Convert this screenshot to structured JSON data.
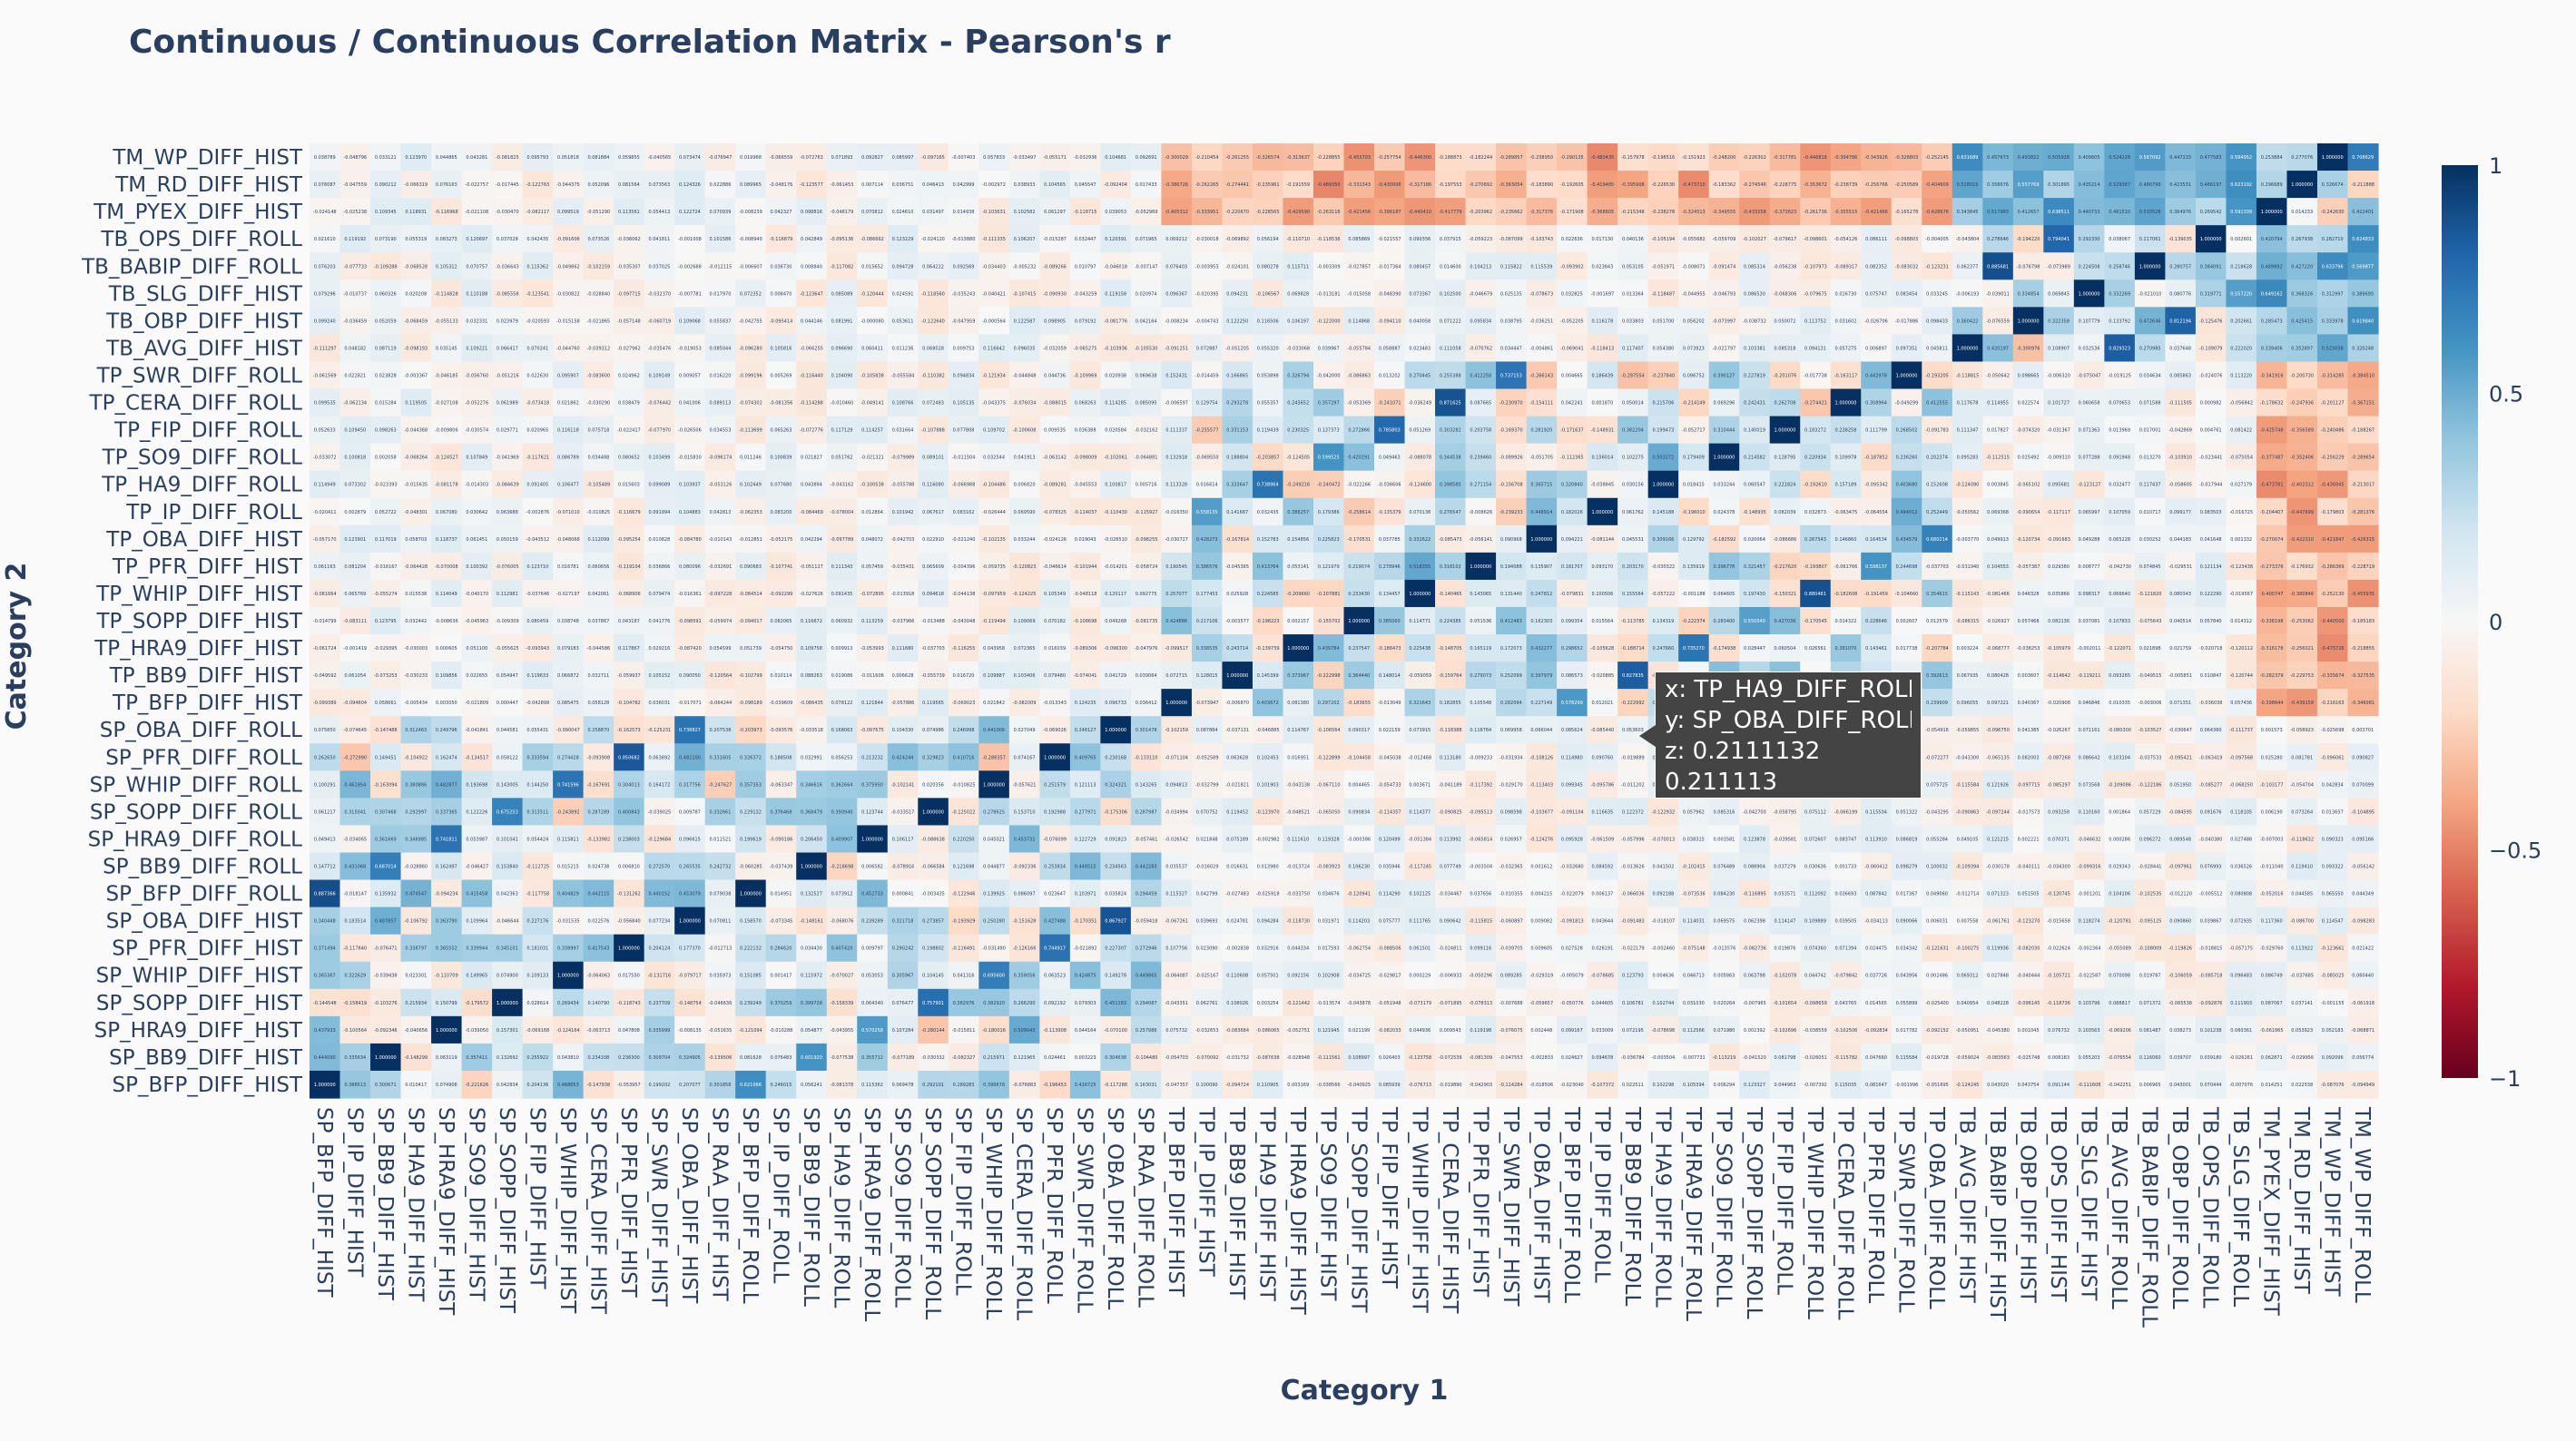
{
  "chart_data": {
    "type": "heatmap",
    "title": "Continuous / Continuous Correlation Matrix - Pearson's r",
    "xlabel": "Category 1",
    "ylabel": "Category 2",
    "x_categories": [
      "SP_BFP_DIFF_HIST",
      "SP_IP_DIFF_HIST",
      "SP_BB9_DIFF_HIST",
      "SP_HA9_DIFF_HIST",
      "SP_HRA9_DIFF_HIST",
      "SP_SO9_DIFF_HIST",
      "SP_SOPP_DIFF_HIST",
      "SP_FIP_DIFF_HIST",
      "SP_WHIP_DIFF_HIST",
      "SP_CERA_DIFF_HIST",
      "SP_PFR_DIFF_HIST",
      "SP_SWR_DIFF_HIST",
      "SP_OBA_DIFF_HIST",
      "SP_RAA_DIFF_HIST",
      "SP_BFP_DIFF_ROLL",
      "SP_IP_DIFF_ROLL",
      "SP_BB9_DIFF_ROLL",
      "SP_HA9_DIFF_ROLL",
      "SP_HRA9_DIFF_ROLL",
      "SP_SO9_DIFF_ROLL",
      "SP_SOPP_DIFF_ROLL",
      "SP_FIP_DIFF_ROLL",
      "SP_WHIP_DIFF_ROLL",
      "SP_CERA_DIFF_ROLL",
      "SP_PFR_DIFF_ROLL",
      "SP_SWR_DIFF_ROLL",
      "SP_OBA_DIFF_ROLL",
      "SP_RAA_DIFF_ROLL",
      "TP_BFP_DIFF_HIST",
      "TP_IP_DIFF_HIST",
      "TP_BB9_DIFF_HIST",
      "TP_HA9_DIFF_HIST",
      "TP_HRA9_DIFF_HIST",
      "TP_SO9_DIFF_HIST",
      "TP_SOPP_DIFF_HIST",
      "TP_FIP_DIFF_HIST",
      "TP_WHIP_DIFF_HIST",
      "TP_CERA_DIFF_HIST",
      "TP_PFR_DIFF_HIST",
      "TP_SWR_DIFF_HIST",
      "TP_OBA_DIFF_HIST",
      "TP_BFP_DIFF_ROLL",
      "TP_IP_DIFF_ROLL",
      "TP_BB9_DIFF_ROLL",
      "TP_HA9_DIFF_ROLL",
      "TP_HRA9_DIFF_ROLL",
      "TP_SO9_DIFF_ROLL",
      "TP_SOPP_DIFF_ROLL",
      "TP_FIP_DIFF_ROLL",
      "TP_WHIP_DIFF_ROLL",
      "TP_CERA_DIFF_ROLL",
      "TP_PFR_DIFF_ROLL",
      "TP_SWR_DIFF_ROLL",
      "TP_OBA_DIFF_ROLL",
      "TB_AVG_DIFF_HIST",
      "TB_BABIP_DIFF_HIST",
      "TB_OBP_DIFF_HIST",
      "TB_OPS_DIFF_HIST",
      "TB_SLG_DIFF_HIST",
      "TB_AVG_DIFF_ROLL",
      "TB_BABIP_DIFF_ROLL",
      "TB_OBP_DIFF_ROLL",
      "TB_OPS_DIFF_ROLL",
      "TB_SLG_DIFF_ROLL",
      "TM_PYEX_DIFF_HIST",
      "TM_RD_DIFF_HIST",
      "TM_WP_DIFF_HIST",
      "TM_WP_DIFF_ROLL"
    ],
    "y_categories": [
      "TM_WP_DIFF_HIST",
      "TM_RD_DIFF_HIST",
      "TM_PYEX_DIFF_HIST",
      "TB_OPS_DIFF_ROLL",
      "TB_BABIP_DIFF_ROLL",
      "TB_SLG_DIFF_HIST",
      "TB_OBP_DIFF_HIST",
      "TB_AVG_DIFF_HIST",
      "TP_SWR_DIFF_ROLL",
      "TP_CERA_DIFF_ROLL",
      "TP_FIP_DIFF_ROLL",
      "TP_SO9_DIFF_ROLL",
      "TP_HA9_DIFF_ROLL",
      "TP_IP_DIFF_ROLL",
      "TP_OBA_DIFF_HIST",
      "TP_PFR_DIFF_HIST",
      "TP_WHIP_DIFF_HIST",
      "TP_SOPP_DIFF_HIST",
      "TP_HRA9_DIFF_HIST",
      "TP_BB9_DIFF_HIST",
      "TP_BFP_DIFF_HIST",
      "SP_OBA_DIFF_ROLL",
      "SP_PFR_DIFF_ROLL",
      "SP_WHIP_DIFF_ROLL",
      "SP_SOPP_DIFF_ROLL",
      "SP_HRA9_DIFF_ROLL",
      "SP_BB9_DIFF_ROLL",
      "SP_BFP_DIFF_ROLL",
      "SP_OBA_DIFF_HIST",
      "SP_PFR_DIFF_HIST",
      "SP_WHIP_DIFF_HIST",
      "SP_SOPP_DIFF_HIST",
      "SP_HRA9_DIFF_HIST",
      "SP_BB9_DIFF_HIST",
      "SP_BFP_DIFF_HIST"
    ],
    "zlim": [
      -1,
      1
    ],
    "colorscale": "RdBu",
    "colorbar_ticks": [
      "1",
      "0.5",
      "0",
      "−0.5",
      "−1"
    ],
    "colorbar_tick_values": [
      1,
      0.5,
      0,
      -0.5,
      -1
    ],
    "diagonal_value": 1,
    "selected_cell": {
      "x": "TP_HA9_DIFF_ROLL",
      "y": "SP_OBA_DIFF_ROLL",
      "z": 0.2111132
    },
    "colors": {
      "max": "#053061",
      "mid": "#f7f7f7",
      "min": "#67001f"
    }
  },
  "tooltip": {
    "x_line": "x: TP_HA9_DIFF_ROLL",
    "y_line": "y: SP_OBA_DIFF_ROLL",
    "z_line": "z: 0.2111132",
    "value_line": "0.211113"
  }
}
